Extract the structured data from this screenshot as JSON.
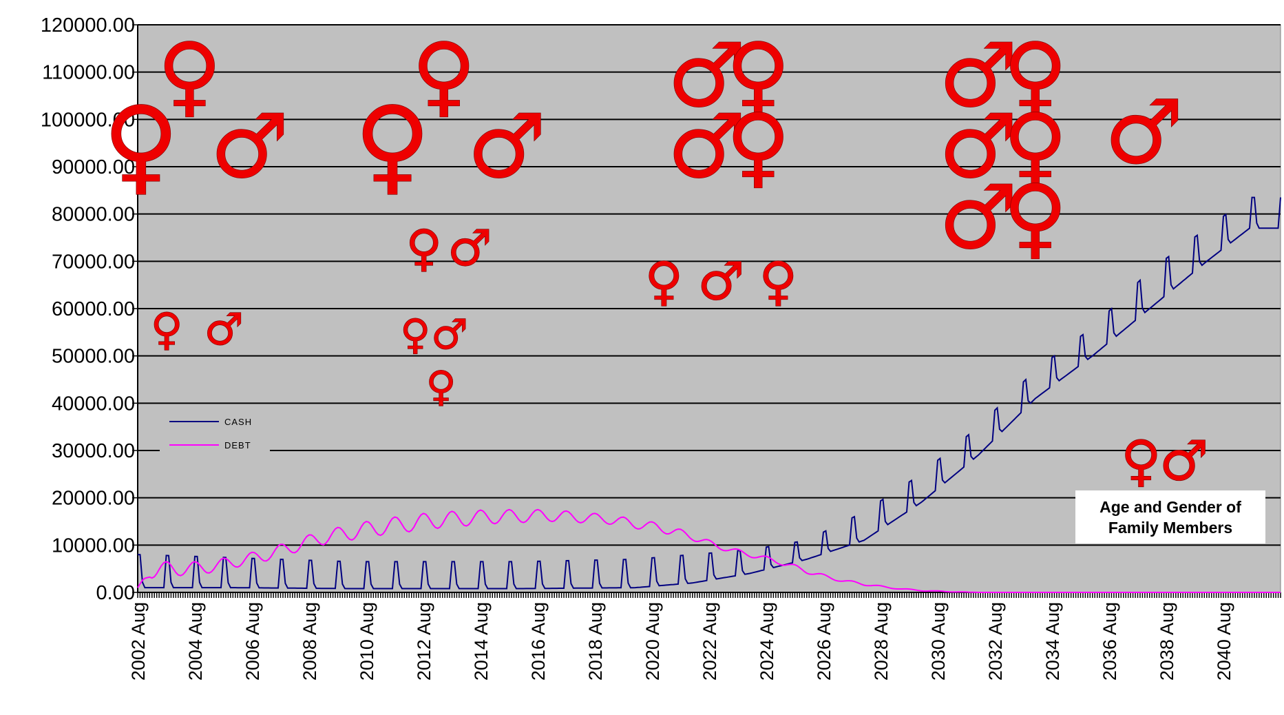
{
  "chart_data": {
    "type": "line",
    "ylim": [
      0,
      120000
    ],
    "yticks": [
      "0.00",
      "10000.00",
      "20000.00",
      "30000.00",
      "40000.00",
      "50000.00",
      "60000.00",
      "70000.00",
      "80000.00",
      "90000.00",
      "100000.00",
      "110000.00",
      "120000.00"
    ],
    "xticks": [
      "2002 Aug",
      "2004 Aug",
      "2006 Aug",
      "2008 Aug",
      "2010 Aug",
      "2012 Aug",
      "2014 Aug",
      "2016 Aug",
      "2018 Aug",
      "2020 Aug",
      "2022 Aug",
      "2024 Aug",
      "2026 Aug",
      "2028 Aug",
      "2030 Aug",
      "2032 Aug",
      "2034 Aug",
      "2036 Aug",
      "2038 Aug",
      "2040 Aug"
    ],
    "x_range": [
      "2002 Aug",
      "2042 Aug"
    ],
    "grid": true,
    "legend_position": "left-middle",
    "series": [
      {
        "name": "CASH",
        "color": "#000080",
        "annual_low_points": [
          {
            "year": 2002.6,
            "value": 1000
          },
          {
            "year": 2006,
            "value": 1000
          },
          {
            "year": 2010,
            "value": 800
          },
          {
            "year": 2016,
            "value": 800
          },
          {
            "year": 2020,
            "value": 1000
          },
          {
            "year": 2022,
            "value": 2000
          },
          {
            "year": 2024,
            "value": 4000
          },
          {
            "year": 2026,
            "value": 7000
          },
          {
            "year": 2028,
            "value": 11000
          },
          {
            "year": 2030,
            "value": 19000
          },
          {
            "year": 2032,
            "value": 29000
          },
          {
            "year": 2034,
            "value": 41000
          },
          {
            "year": 2036,
            "value": 50000
          },
          {
            "year": 2038,
            "value": 60000
          },
          {
            "year": 2040,
            "value": 70000
          },
          {
            "year": 2041.5,
            "value": 77000
          }
        ],
        "annual_peak_points": [
          {
            "year": 2002.6,
            "value": 8000
          },
          {
            "year": 2010,
            "value": 6500
          },
          {
            "year": 2016,
            "value": 6500
          },
          {
            "year": 2020,
            "value": 7000
          },
          {
            "year": 2022,
            "value": 8000
          },
          {
            "year": 2024,
            "value": 9000
          },
          {
            "year": 2026,
            "value": 11000
          },
          {
            "year": 2028,
            "value": 17000
          },
          {
            "year": 2030,
            "value": 25000
          },
          {
            "year": 2032,
            "value": 35000
          },
          {
            "year": 2034,
            "value": 47000
          },
          {
            "year": 2036,
            "value": 56000
          },
          {
            "year": 2038,
            "value": 68000
          },
          {
            "year": 2040,
            "value": 77000
          },
          {
            "year": 2041.5,
            "value": 83500
          }
        ]
      },
      {
        "name": "DEBT",
        "color": "#ff00ff",
        "annual_low_points": [
          {
            "year": 2002.6,
            "value": 0
          },
          {
            "year": 2003,
            "value": 3000
          },
          {
            "year": 2005,
            "value": 4000
          },
          {
            "year": 2007,
            "value": 6500
          },
          {
            "year": 2009,
            "value": 10000
          },
          {
            "year": 2011,
            "value": 12000
          },
          {
            "year": 2013,
            "value": 13500
          },
          {
            "year": 2015,
            "value": 14500
          },
          {
            "year": 2017,
            "value": 15000
          },
          {
            "year": 2019,
            "value": 14500
          },
          {
            "year": 2021,
            "value": 12500
          },
          {
            "year": 2022,
            "value": 11000
          },
          {
            "year": 2023,
            "value": 9000
          },
          {
            "year": 2024,
            "value": 7500
          },
          {
            "year": 2025,
            "value": 6000
          },
          {
            "year": 2026,
            "value": 4000
          },
          {
            "year": 2027,
            "value": 2500
          },
          {
            "year": 2028,
            "value": 1500
          },
          {
            "year": 2029,
            "value": 800
          },
          {
            "year": 2030,
            "value": 300
          },
          {
            "year": 2031,
            "value": 100
          },
          {
            "year": 2032,
            "value": 0
          },
          {
            "year": 2042,
            "value": 0
          }
        ],
        "annual_peak_points": [
          {
            "year": 2002.6,
            "value": 1000
          },
          {
            "year": 2003,
            "value": 6500
          },
          {
            "year": 2005,
            "value": 6500
          },
          {
            "year": 2007,
            "value": 9000
          },
          {
            "year": 2009,
            "value": 13000
          },
          {
            "year": 2011,
            "value": 15500
          },
          {
            "year": 2013,
            "value": 17000
          },
          {
            "year": 2015,
            "value": 17500
          },
          {
            "year": 2017,
            "value": 17500
          },
          {
            "year": 2019,
            "value": 16500
          },
          {
            "year": 2021,
            "value": 14500
          },
          {
            "year": 2022,
            "value": 12500
          },
          {
            "year": 2023,
            "value": 10000
          },
          {
            "year": 2024,
            "value": 8500
          },
          {
            "year": 2025,
            "value": 7000
          },
          {
            "year": 2026,
            "value": 5000
          },
          {
            "year": 2027,
            "value": 3000
          },
          {
            "year": 2028,
            "value": 2000
          },
          {
            "year": 2029,
            "value": 1000
          },
          {
            "year": 2030,
            "value": 500
          },
          {
            "year": 2031,
            "value": 200
          },
          {
            "year": 2032,
            "value": 0
          },
          {
            "year": 2042,
            "value": 0
          }
        ]
      }
    ],
    "annotation": {
      "line1": "Age and Gender of",
      "line2": "Family Members"
    },
    "gender_symbols": [
      {
        "glyph": "♀",
        "year": 2002.7,
        "value": 93000,
        "scale": 1.9
      },
      {
        "glyph": "♀",
        "year": 2004.4,
        "value": 108000,
        "scale": 1.6
      },
      {
        "glyph": "♂",
        "year": 2006.5,
        "value": 93000,
        "scale": 1.6
      },
      {
        "glyph": "♀",
        "year": 2003.6,
        "value": 55000,
        "scale": 0.8
      },
      {
        "glyph": "♂",
        "year": 2005.6,
        "value": 55000,
        "scale": 0.8
      },
      {
        "glyph": "♀",
        "year": 2011.5,
        "value": 93000,
        "scale": 1.9
      },
      {
        "glyph": "♀",
        "year": 2013.3,
        "value": 108000,
        "scale": 1.6
      },
      {
        "glyph": "♂",
        "year": 2015.5,
        "value": 93000,
        "scale": 1.6
      },
      {
        "glyph": "♀",
        "year": 2012.6,
        "value": 72000,
        "scale": 0.9
      },
      {
        "glyph": "♂",
        "year": 2014.2,
        "value": 72000,
        "scale": 0.9
      },
      {
        "glyph": "♀",
        "year": 2012.3,
        "value": 54000,
        "scale": 0.75
      },
      {
        "glyph": "♂",
        "year": 2013.5,
        "value": 54000,
        "scale": 0.75
      },
      {
        "glyph": "♀",
        "year": 2013.2,
        "value": 43000,
        "scale": 0.75
      },
      {
        "glyph": "♂",
        "year": 2022.5,
        "value": 108000,
        "scale": 1.6
      },
      {
        "glyph": "♀",
        "year": 2024.3,
        "value": 108000,
        "scale": 1.6
      },
      {
        "glyph": "♂",
        "year": 2022.5,
        "value": 93000,
        "scale": 1.6
      },
      {
        "glyph": "♀",
        "year": 2024.3,
        "value": 93000,
        "scale": 1.6
      },
      {
        "glyph": "♀",
        "year": 2021.0,
        "value": 65000,
        "scale": 0.95
      },
      {
        "glyph": "♂",
        "year": 2023.0,
        "value": 65000,
        "scale": 0.95
      },
      {
        "glyph": "♀",
        "year": 2025.0,
        "value": 65000,
        "scale": 0.95
      },
      {
        "glyph": "♂",
        "year": 2032.0,
        "value": 108000,
        "scale": 1.6
      },
      {
        "glyph": "♀",
        "year": 2034.0,
        "value": 108000,
        "scale": 1.6
      },
      {
        "glyph": "♂",
        "year": 2032.0,
        "value": 93000,
        "scale": 1.6
      },
      {
        "glyph": "♀",
        "year": 2034.0,
        "value": 93000,
        "scale": 1.6
      },
      {
        "glyph": "♂",
        "year": 2032.0,
        "value": 78000,
        "scale": 1.6
      },
      {
        "glyph": "♀",
        "year": 2034.0,
        "value": 78000,
        "scale": 1.6
      },
      {
        "glyph": "♂",
        "year": 2037.8,
        "value": 96000,
        "scale": 1.6
      },
      {
        "glyph": "♀",
        "year": 2037.7,
        "value": 27000,
        "scale": 1.0
      },
      {
        "glyph": "♂",
        "year": 2039.2,
        "value": 27000,
        "scale": 1.0
      }
    ]
  }
}
